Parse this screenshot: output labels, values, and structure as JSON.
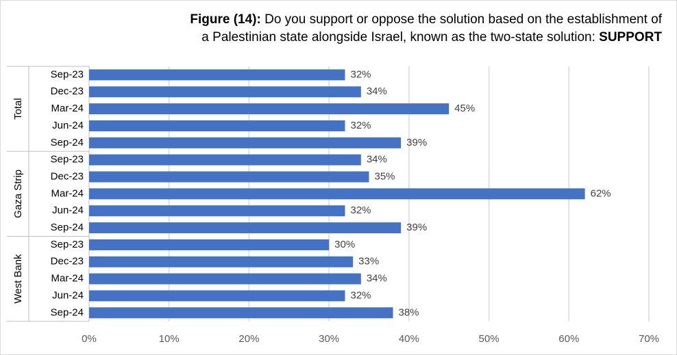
{
  "title": {
    "prefix": "Figure (14):",
    "line1": " Do you support or oppose the solution based on the establishment of",
    "line2": "a Palestinian state alongside Israel, known as the two-state solution: ",
    "emphasis": "SUPPORT"
  },
  "chart_data": {
    "type": "bar",
    "orientation": "horizontal",
    "groups": [
      {
        "name": "Total",
        "categories": [
          "Sep-23",
          "Dec-23",
          "Mar-24",
          "Jun-24",
          "Sep-24"
        ],
        "values": [
          32,
          34,
          45,
          32,
          39
        ]
      },
      {
        "name": "Gaza Strip",
        "categories": [
          "Sep-23",
          "Dec-23",
          "Mar-24",
          "Jun-24",
          "Sep-24"
        ],
        "values": [
          34,
          35,
          62,
          32,
          39
        ]
      },
      {
        "name": "West Bank",
        "categories": [
          "Sep-23",
          "Dec-23",
          "Mar-24",
          "Jun-24",
          "Sep-24"
        ],
        "values": [
          30,
          33,
          34,
          32,
          38
        ]
      }
    ],
    "value_suffix": "%",
    "xlim": [
      0,
      70
    ],
    "xticks": [
      0,
      10,
      20,
      30,
      40,
      50,
      60,
      70
    ],
    "xtick_labels": [
      "0%",
      "10%",
      "20%",
      "30%",
      "40%",
      "50%",
      "60%",
      "70%"
    ],
    "grid": true,
    "bar_color": "#4472c4",
    "grid_color": "#d9d9d9"
  }
}
